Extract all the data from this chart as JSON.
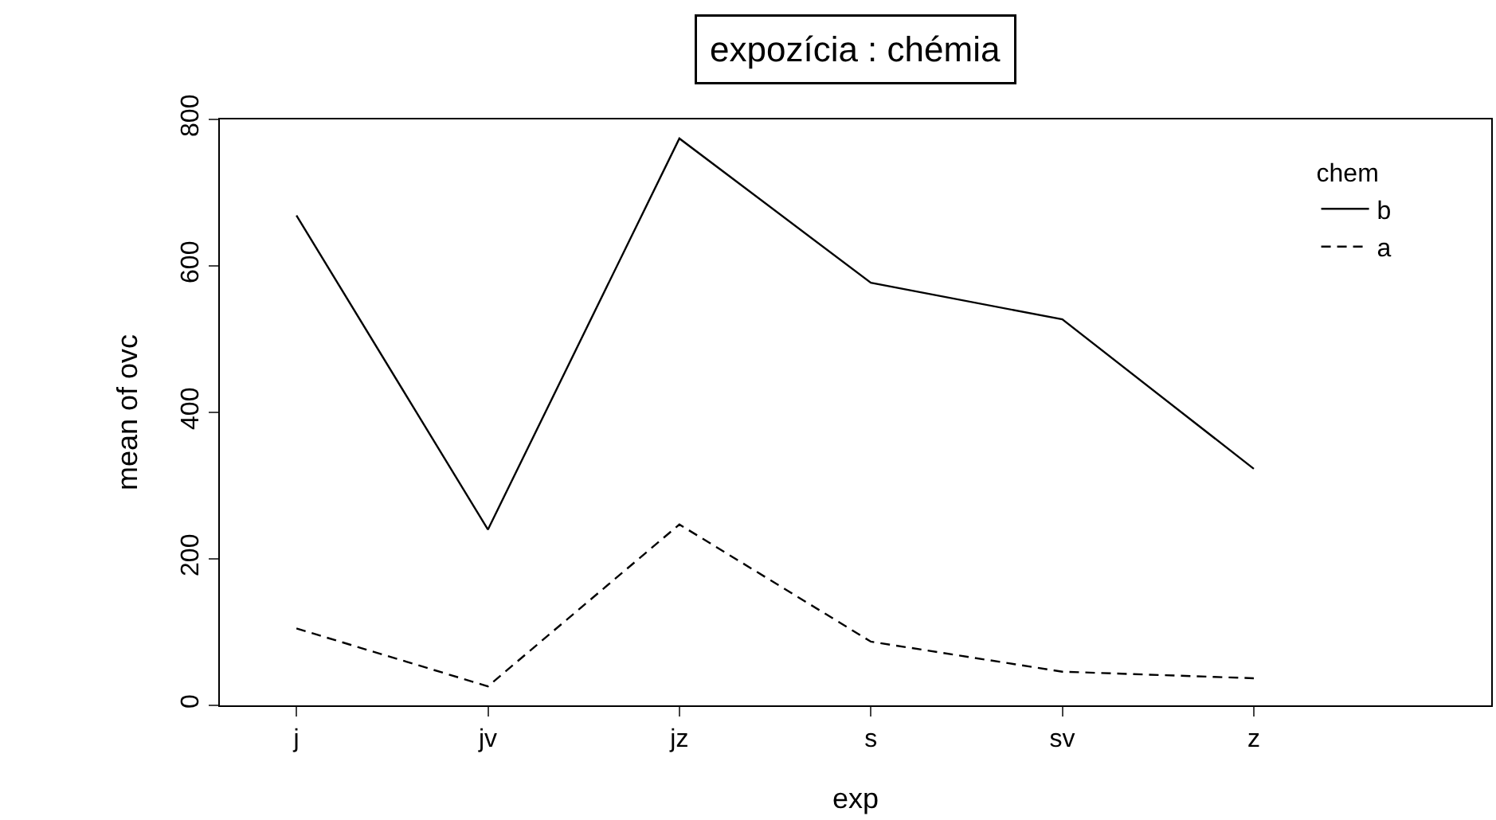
{
  "chart_data": {
    "type": "line",
    "title": "expozícia : chémia",
    "xlabel": "exp",
    "ylabel": "mean of ovc",
    "legend_title": "chem",
    "categories": [
      "j",
      "jv",
      "jz",
      "s",
      "sv",
      "z"
    ],
    "series": [
      {
        "name": "b",
        "color": "#000000",
        "line_style": "solid",
        "values": [
          669,
          240,
          774,
          577,
          527,
          323
        ]
      },
      {
        "name": "a",
        "color": "#000000",
        "line_style": "dashed",
        "values": [
          105,
          26,
          247,
          87,
          46,
          37
        ]
      }
    ],
    "ylim": [
      0,
      800
    ],
    "yticks": [
      0,
      200,
      400,
      600,
      800
    ],
    "grid": false,
    "legend": "top right",
    "marker": "none"
  }
}
